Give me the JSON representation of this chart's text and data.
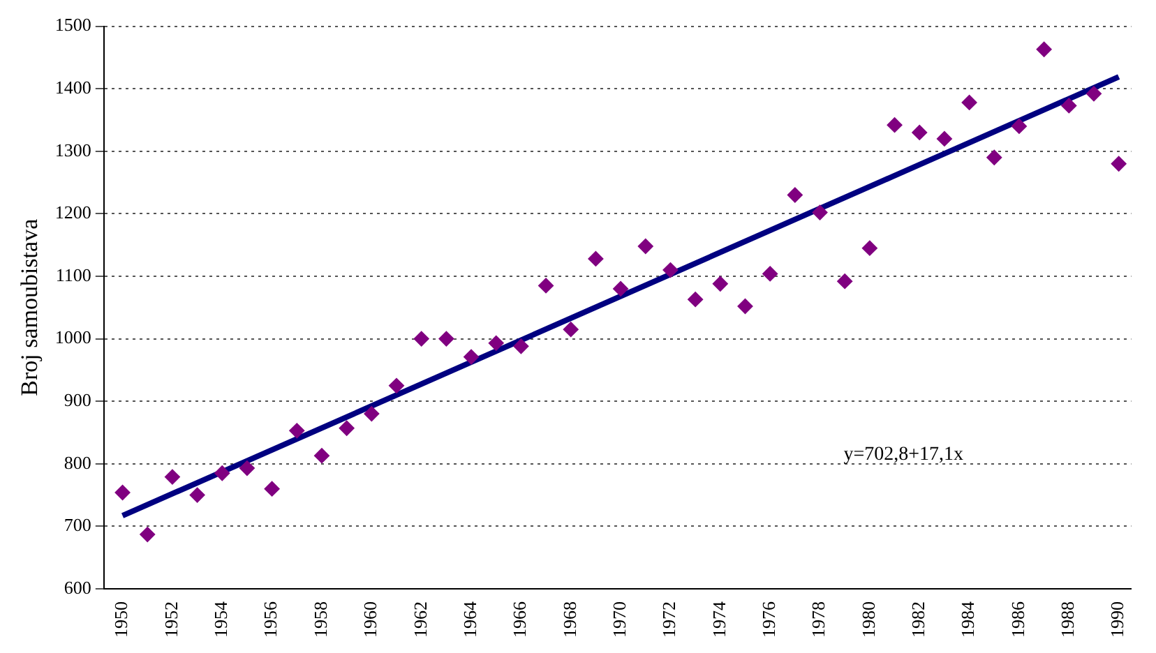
{
  "chart_data": {
    "type": "scatter",
    "ylabel": "Broj samoubistava",
    "x": [
      1950,
      1951,
      1952,
      1953,
      1954,
      1955,
      1956,
      1957,
      1958,
      1959,
      1960,
      1961,
      1962,
      1963,
      1964,
      1965,
      1966,
      1967,
      1968,
      1969,
      1970,
      1971,
      1972,
      1973,
      1974,
      1975,
      1976,
      1977,
      1978,
      1979,
      1980,
      1981,
      1982,
      1983,
      1984,
      1985,
      1986,
      1987,
      1988,
      1989,
      1990
    ],
    "series": [
      {
        "type": "scatter",
        "color": "#800080",
        "marker": "diamond",
        "values": [
          754,
          687,
          779,
          750,
          785,
          793,
          760,
          853,
          813,
          857,
          880,
          925,
          1000,
          1000,
          971,
          993,
          988,
          1085,
          1015,
          1128,
          1080,
          1148,
          1110,
          1063,
          1088,
          1052,
          1104,
          1230,
          1202,
          1092,
          1145,
          1342,
          1330,
          1320,
          1378,
          1290,
          1340,
          1463,
          1373,
          1392,
          1280
        ]
      },
      {
        "type": "line",
        "color": "#000080",
        "marker": "none",
        "line_style": "solid",
        "x": [
          1950,
          1990
        ],
        "values": [
          717,
          1419
        ]
      }
    ],
    "xlim": [
      1949.25,
      1990.5
    ],
    "xticks": [
      1950,
      1952,
      1954,
      1956,
      1958,
      1960,
      1962,
      1964,
      1966,
      1968,
      1970,
      1972,
      1974,
      1976,
      1978,
      1980,
      1982,
      1984,
      1986,
      1988,
      1990
    ],
    "ylim": [
      600,
      1500
    ],
    "yticks": [
      600,
      700,
      800,
      900,
      1000,
      1100,
      1200,
      1300,
      1400,
      1500
    ],
    "grid": "y",
    "legend": false,
    "annotations": [
      "y=702,8+17,1x"
    ]
  }
}
